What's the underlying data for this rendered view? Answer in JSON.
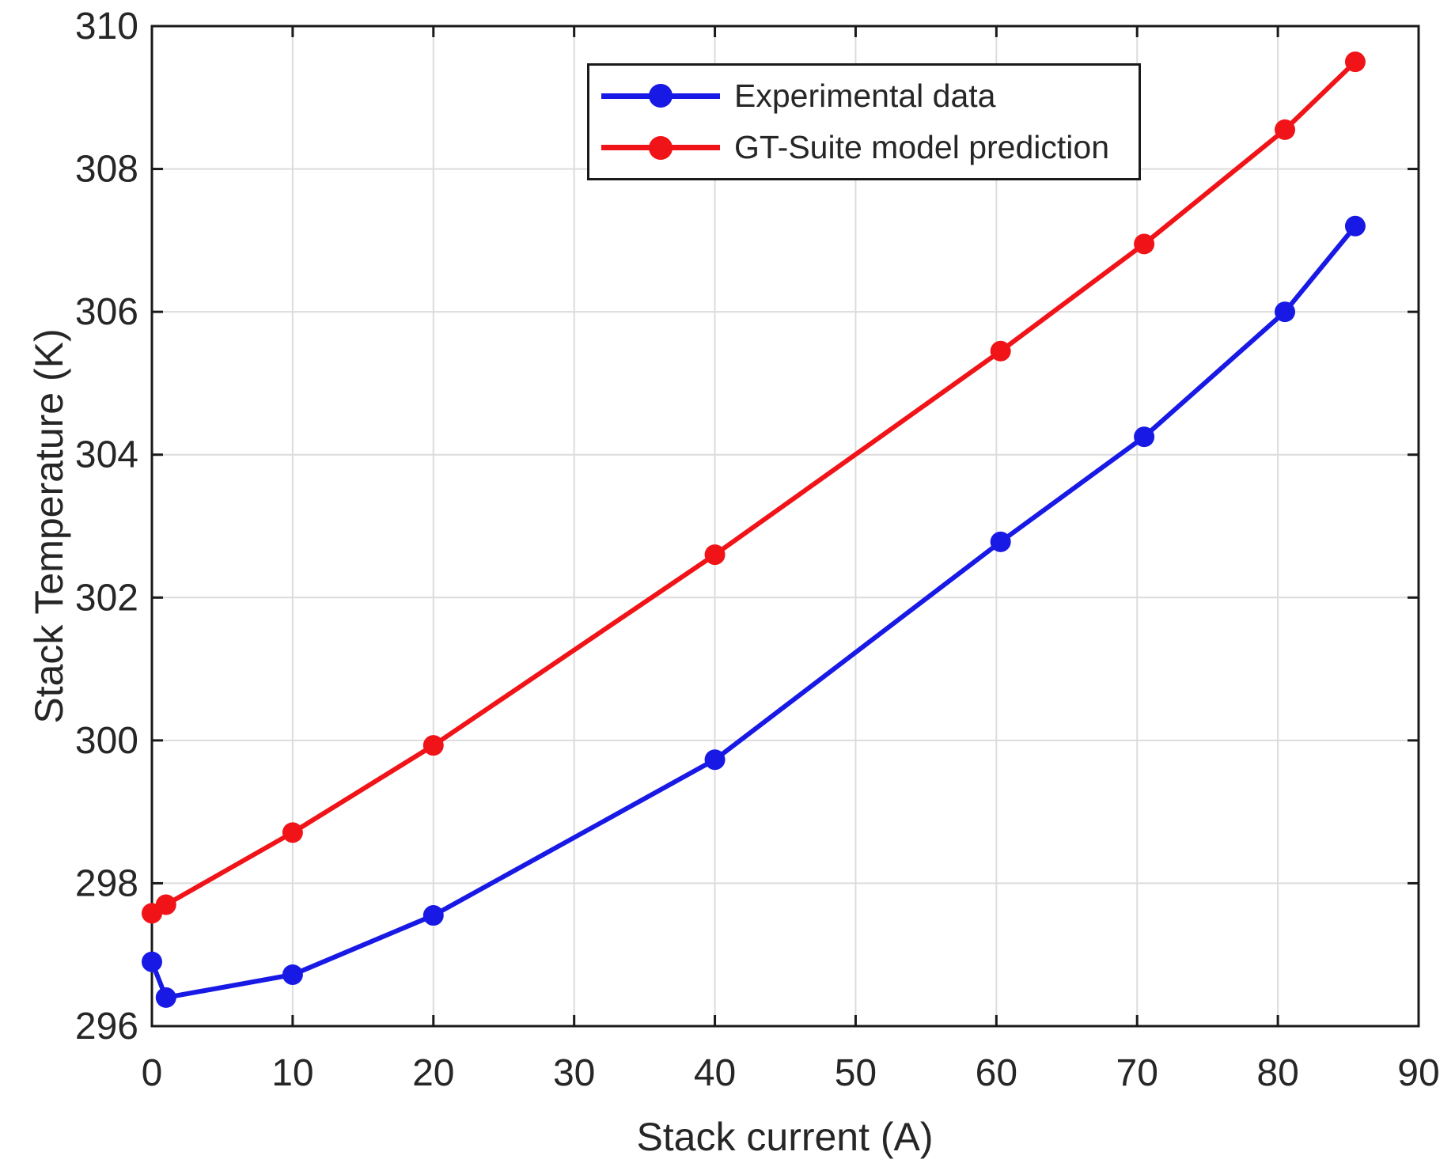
{
  "figure": {
    "background": "#ffffff",
    "axis_color": "#1a1a1a",
    "grid_color": "#dcdcdc",
    "text_color": "#262626"
  },
  "chart_data": {
    "type": "line",
    "title": "",
    "xlabel": "Stack current (A)",
    "ylabel": "Stack Temperature (K)",
    "xlim": [
      0,
      90
    ],
    "ylim": [
      296,
      310
    ],
    "x_ticks": [
      0,
      10,
      20,
      30,
      40,
      50,
      60,
      70,
      80,
      90
    ],
    "y_ticks": [
      296,
      298,
      300,
      302,
      304,
      306,
      308,
      310
    ],
    "grid": true,
    "legend_position": "inside-top-right",
    "series": [
      {
        "name": "Experimental data",
        "color": "#1919E6",
        "marker": "circle",
        "x": [
          0,
          1,
          10,
          20,
          40,
          60.3,
          70.5,
          80.5,
          85.5
        ],
        "y": [
          296.9,
          296.4,
          296.72,
          297.55,
          299.73,
          302.78,
          304.25,
          306.0,
          307.2
        ]
      },
      {
        "name": "GT-Suite model prediction",
        "color": "#F01419",
        "marker": "circle",
        "x": [
          0,
          1,
          10,
          20,
          40,
          60.3,
          70.5,
          80.5,
          85.5
        ],
        "y": [
          297.58,
          297.7,
          298.71,
          299.93,
          302.6,
          305.45,
          306.95,
          308.55,
          309.5
        ]
      }
    ]
  }
}
